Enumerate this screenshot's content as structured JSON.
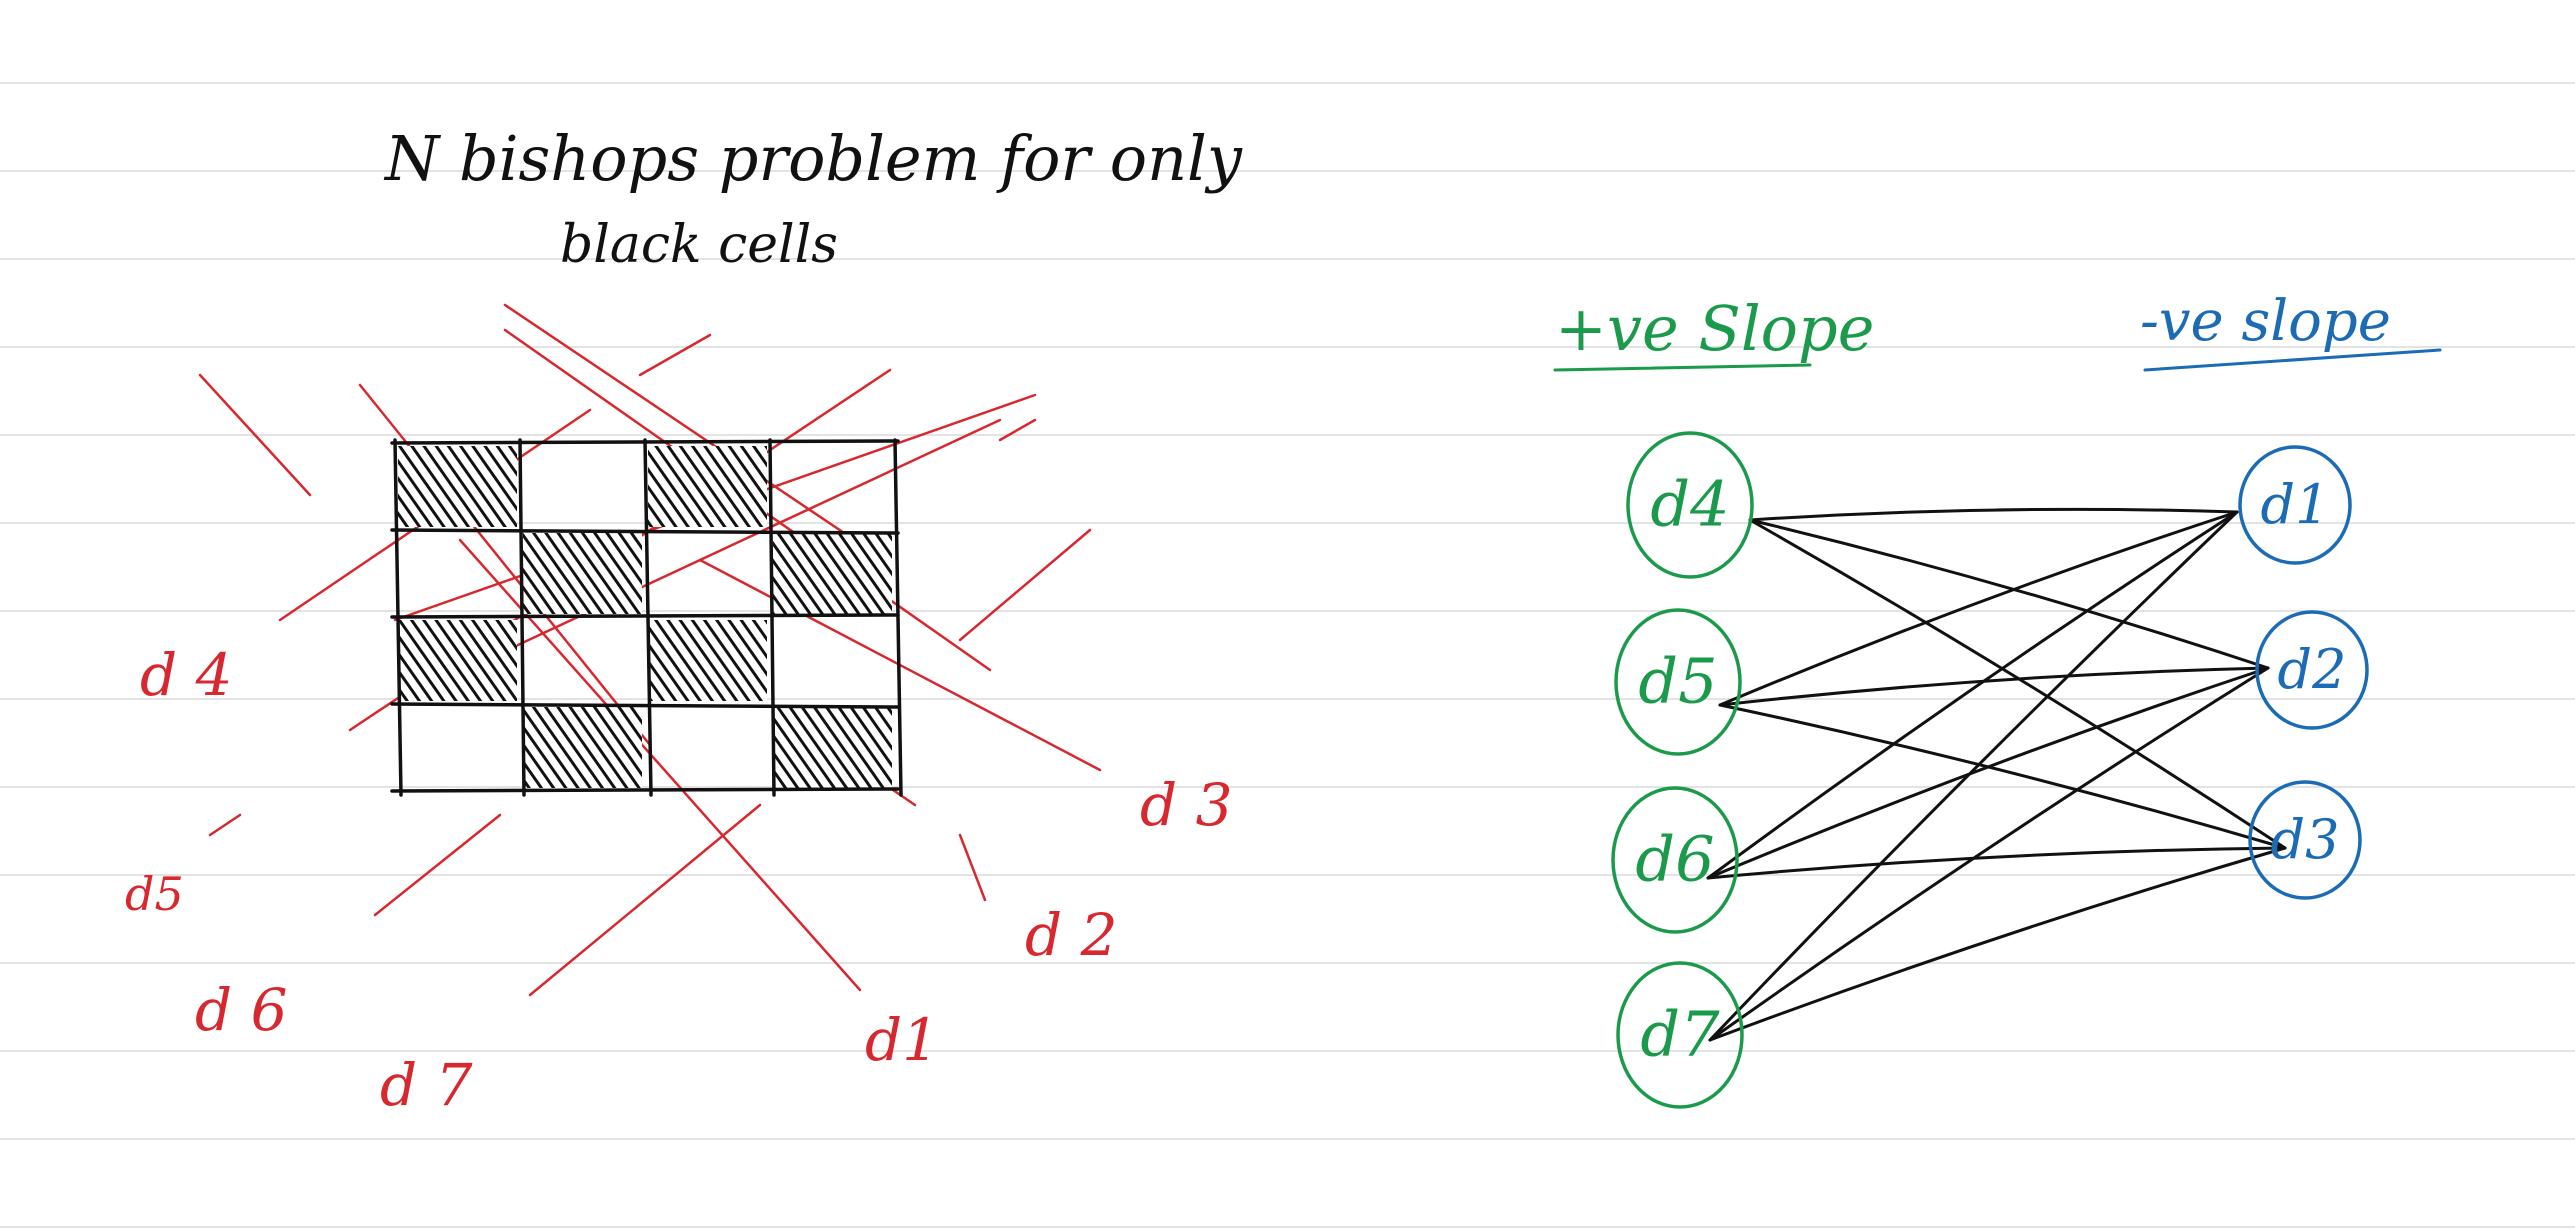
{
  "title": {
    "line1": "N bishops problem for only",
    "line2": "black cells"
  },
  "colors": {
    "ink": "#111111",
    "red": "#d7282f",
    "green": "#1a9a4a",
    "blue": "#1c6bb5",
    "rule": "#e3e3e3",
    "paper": "#ffffff"
  },
  "board": {
    "rows": 4,
    "cols": 4,
    "shaded_cells": [
      [
        0,
        0
      ],
      [
        0,
        2
      ],
      [
        1,
        1
      ],
      [
        1,
        3
      ],
      [
        2,
        0
      ],
      [
        2,
        2
      ],
      [
        3,
        1
      ],
      [
        3,
        3
      ]
    ]
  },
  "diagonal_labels": [
    "d 4",
    "d5",
    "d 6",
    "d 7",
    "d 3",
    "d 2",
    "d1"
  ],
  "graph": {
    "positive_slope_header": "+ve Slope",
    "negative_slope_header": "-ve slope",
    "left_nodes": [
      "d4",
      "d5",
      "d6",
      "d7"
    ],
    "right_nodes": [
      "d1",
      "d2",
      "d3"
    ],
    "edges": [
      [
        "d4",
        "d1"
      ],
      [
        "d4",
        "d2"
      ],
      [
        "d4",
        "d3"
      ],
      [
        "d5",
        "d1"
      ],
      [
        "d5",
        "d2"
      ],
      [
        "d5",
        "d3"
      ],
      [
        "d6",
        "d1"
      ],
      [
        "d6",
        "d2"
      ],
      [
        "d6",
        "d3"
      ],
      [
        "d7",
        "d1"
      ],
      [
        "d7",
        "d2"
      ],
      [
        "d7",
        "d3"
      ]
    ]
  }
}
